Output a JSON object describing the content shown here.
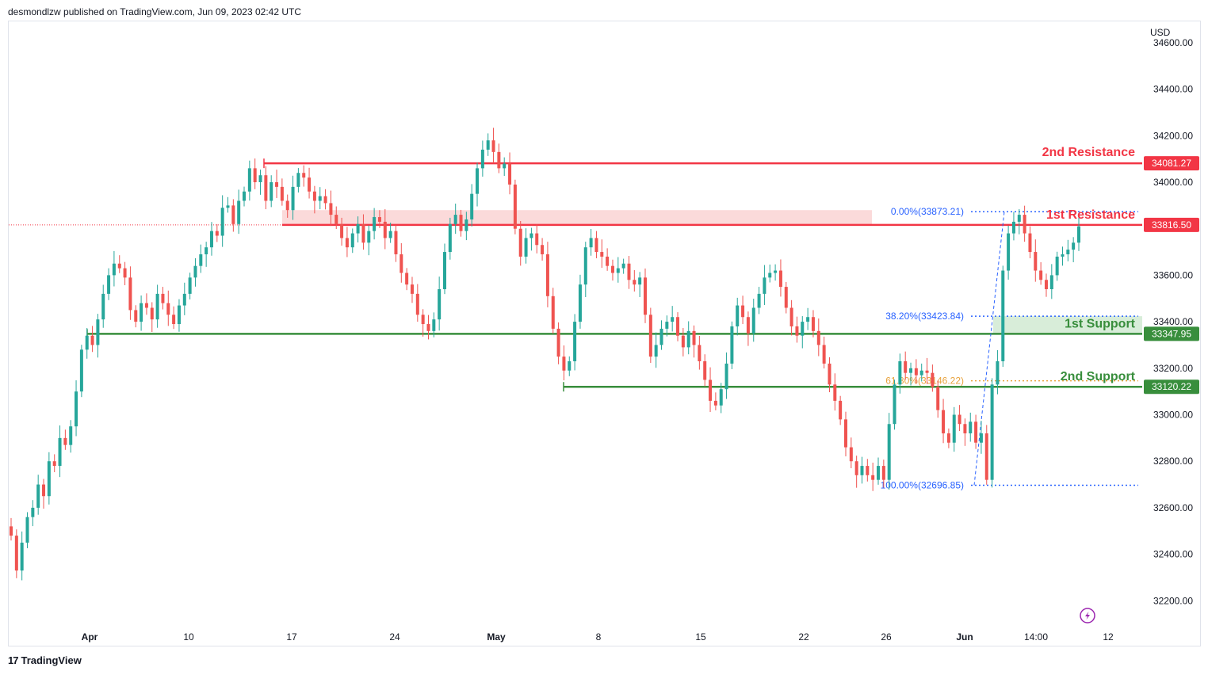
{
  "header": {
    "published": "desmondlzw published on TradingView.com, Jun 09, 2023 02:42 UTC"
  },
  "footer": {
    "logo_mark": "17",
    "brand": "TradingView"
  },
  "colors": {
    "up": "#26a69a",
    "down": "#ef5350",
    "resistance": "#f23645",
    "support": "#388e3c",
    "fib": "#2962ff",
    "fib_gold": "#e8a33d"
  },
  "icons": {
    "flash": "lightning-circle-icon"
  },
  "chart_data": {
    "type": "candlestick",
    "currency": "USD",
    "y_axis_ticks": [
      "34600.00",
      "34400.00",
      "34200.00",
      "34000.00",
      "33600.00",
      "33400.00",
      "33200.00",
      "33000.00",
      "32800.00",
      "32600.00",
      "32400.00",
      "32200.00"
    ],
    "x_axis_ticks": [
      "Apr",
      "10",
      "17",
      "24",
      "May",
      "8",
      "15",
      "22",
      "26",
      "Jun",
      "14:00",
      "12"
    ],
    "current_price_label": "33816.50",
    "levels": [
      {
        "name": "2nd Resistance",
        "price": 34081.27,
        "label": "34081.27",
        "kind": "resistance"
      },
      {
        "name": "1st Resistance",
        "price": 33816.5,
        "label": "33816.50",
        "kind": "resistance"
      },
      {
        "name": "1st Support",
        "price": 33347.95,
        "label": "33347.95",
        "kind": "support"
      },
      {
        "name": "2nd Support",
        "price": 33120.22,
        "label": "33120.22",
        "kind": "support"
      }
    ],
    "fibonacci": [
      {
        "label": "0.00%(33873.21)",
        "price": 33873.21
      },
      {
        "label": "38.20%(33423.84)",
        "price": 33423.84
      },
      {
        "label": "61.80%(33146.22)",
        "price": 33146.22
      },
      {
        "label": "100.00%(32696.85)",
        "price": 32696.85
      }
    ],
    "closes": [
      32480,
      32330,
      32450,
      32560,
      32600,
      32700,
      32650,
      32800,
      32780,
      32900,
      32870,
      32950,
      33100,
      33280,
      33340,
      33300,
      33410,
      33520,
      33600,
      33650,
      33630,
      33590,
      33450,
      33400,
      33480,
      33460,
      33410,
      33520,
      33480,
      33430,
      33390,
      33470,
      33520,
      33590,
      33640,
      33690,
      33720,
      33790,
      33770,
      33890,
      33900,
      33820,
      33920,
      33960,
      34060,
      34000,
      34030,
      33920,
      34000,
      33980,
      33920,
      33880,
      33980,
      34040,
      34020,
      33960,
      33920,
      33940,
      33910,
      33860,
      33820,
      33760,
      33720,
      33780,
      33820,
      33740,
      33790,
      33850,
      33830,
      33760,
      33790,
      33690,
      33610,
      33560,
      33520,
      33430,
      33390,
      33360,
      33410,
      33540,
      33700,
      33820,
      33860,
      33790,
      33840,
      33950,
      34060,
      34140,
      34180,
      34130,
      34060,
      34080,
      33990,
      33800,
      33680,
      33760,
      33780,
      33730,
      33690,
      33510,
      33370,
      33250,
      33190,
      33230,
      33400,
      33560,
      33720,
      33760,
      33700,
      33680,
      33640,
      33610,
      33630,
      33650,
      33580,
      33560,
      33590,
      33430,
      33250,
      33300,
      33370,
      33400,
      33420,
      33340,
      33290,
      33360,
      33300,
      33230,
      33150,
      33060,
      33040,
      33110,
      33220,
      33380,
      33470,
      33420,
      33350,
      33460,
      33520,
      33590,
      33610,
      33620,
      33550,
      33460,
      33380,
      33340,
      33400,
      33420,
      33360,
      33300,
      33220,
      33130,
      33060,
      32980,
      32860,
      32800,
      32740,
      32780,
      32740,
      32720,
      32780,
      32720,
      32960,
      33130,
      33230,
      33180,
      33200,
      33170,
      33190,
      33180,
      33120,
      33020,
      32920,
      32880,
      33000,
      32960,
      32920,
      32970,
      32880,
      32920,
      32720,
      33130,
      33230,
      33620,
      33780,
      33830,
      33860,
      33780,
      33700,
      33620,
      33580,
      33540,
      33600,
      33680,
      33690,
      33710,
      33740,
      33810
    ]
  }
}
